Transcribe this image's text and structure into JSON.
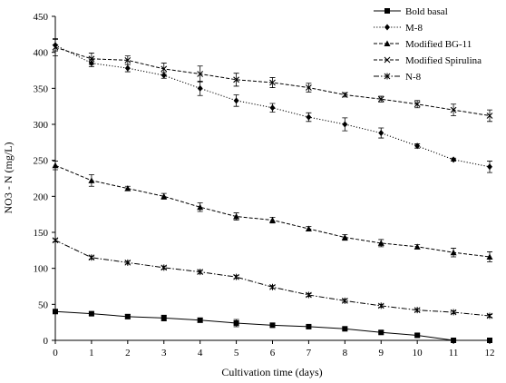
{
  "chart_data": {
    "type": "line",
    "title": "",
    "xlabel": "Cultivation time (days)",
    "ylabel": "NO3 - N (mg/L)",
    "x": [
      0,
      1,
      2,
      3,
      4,
      5,
      6,
      7,
      8,
      9,
      10,
      11,
      12
    ],
    "xlim": [
      0,
      12
    ],
    "ylim": [
      0,
      450
    ],
    "x_ticks": [
      "0",
      "1",
      "2",
      "3",
      "4",
      "5",
      "6",
      "7",
      "8",
      "9",
      "10",
      "11",
      "12"
    ],
    "y_ticks": [
      "0",
      "50",
      "100",
      "150",
      "200",
      "250",
      "300",
      "350",
      "400",
      "450"
    ],
    "grid": false,
    "legend_position": "top-right",
    "series": [
      {
        "name": "Bold basal",
        "marker": "square",
        "dash": "solid",
        "values": [
          40,
          37,
          33,
          31,
          28,
          24,
          21,
          19,
          16,
          11,
          7,
          0,
          0
        ],
        "errors": [
          2,
          2,
          3,
          4,
          3,
          5,
          3,
          2,
          2,
          2,
          2,
          0,
          0
        ]
      },
      {
        "name": "M-8",
        "marker": "diamond",
        "dash": "dotted",
        "values": [
          410,
          385,
          378,
          368,
          350,
          333,
          323,
          310,
          300,
          288,
          270,
          251,
          241
        ],
        "errors": [
          8,
          5,
          5,
          4,
          10,
          8,
          6,
          6,
          9,
          7,
          3,
          2,
          8
        ]
      },
      {
        "name": "Modified BG-11",
        "marker": "triangle",
        "dash": "dash",
        "values": [
          243,
          222,
          211,
          200,
          185,
          172,
          167,
          155,
          143,
          135,
          130,
          122,
          116
        ],
        "errors": [
          6,
          8,
          3,
          4,
          6,
          5,
          4,
          3,
          4,
          5,
          3,
          6,
          7
        ]
      },
      {
        "name": "Modified Spirulina",
        "marker": "x",
        "dash": "dash",
        "values": [
          407,
          391,
          389,
          377,
          370,
          362,
          358,
          351,
          341,
          335,
          328,
          320,
          312
        ],
        "errors": [
          12,
          8,
          6,
          8,
          11,
          9,
          7,
          6,
          3,
          4,
          5,
          8,
          8
        ]
      },
      {
        "name": "N-8",
        "marker": "asterisk",
        "dash": "dashdot",
        "values": [
          139,
          115,
          108,
          101,
          95,
          88,
          74,
          63,
          55,
          48,
          42,
          39,
          34
        ],
        "errors": [
          2,
          2,
          2,
          2,
          2,
          2,
          2,
          2,
          2,
          2,
          2,
          2,
          2
        ]
      }
    ]
  }
}
